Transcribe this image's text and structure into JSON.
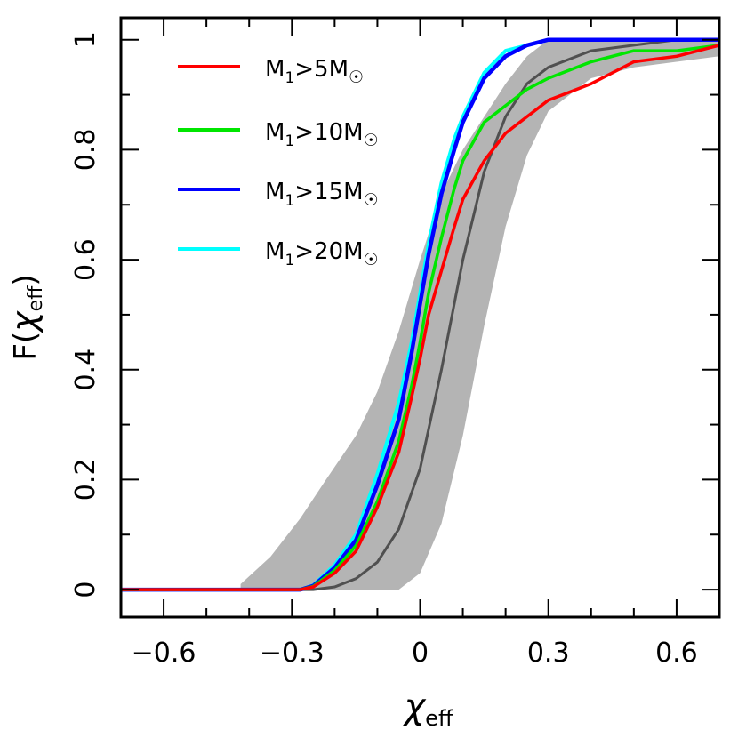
{
  "chart_data": {
    "type": "line",
    "xlabel_base": "χ",
    "xlabel_sub": "eff",
    "ylabel_pre": "F(",
    "ylabel_sym": "χ",
    "ylabel_sub": "eff",
    "ylabel_post": ")",
    "xlim": [
      -0.7,
      0.7
    ],
    "ylim": [
      -0.05,
      1.04
    ],
    "x_ticks": [
      -0.6,
      -0.3,
      0,
      0.3,
      0.6
    ],
    "x_tick_labels": [
      "−0.6",
      "−0.3",
      "0",
      "0.3",
      "0.6"
    ],
    "y_ticks": [
      0,
      0.2,
      0.4,
      0.6,
      0.8,
      1
    ],
    "y_tick_labels": [
      "0",
      "0.2",
      "0.4",
      "0.6",
      "0.8",
      "1"
    ],
    "legend_position": "top-left",
    "band": {
      "name": "model uncertainty band",
      "color": "#b4b4b4",
      "x": [
        -0.42,
        -0.35,
        -0.28,
        -0.22,
        -0.15,
        -0.1,
        -0.05,
        0.0,
        0.05,
        0.1,
        0.15,
        0.2,
        0.25,
        0.3,
        0.4,
        0.5,
        0.6,
        0.7
      ],
      "lower": [
        0.0,
        0.0,
        0.0,
        0.0,
        0.0,
        0.0,
        0.0,
        0.03,
        0.12,
        0.28,
        0.48,
        0.66,
        0.79,
        0.87,
        0.93,
        0.95,
        0.96,
        0.97
      ],
      "upper": [
        0.01,
        0.06,
        0.13,
        0.2,
        0.28,
        0.36,
        0.47,
        0.6,
        0.72,
        0.8,
        0.86,
        0.92,
        0.97,
        1.0,
        1.0,
        1.0,
        1.0,
        1.0
      ]
    },
    "median": {
      "name": "model median",
      "color": "#505050",
      "x": [
        -0.7,
        -0.25,
        -0.2,
        -0.15,
        -0.1,
        -0.05,
        0.0,
        0.05,
        0.1,
        0.15,
        0.2,
        0.25,
        0.3,
        0.4,
        0.5,
        0.6,
        0.7
      ],
      "values": [
        0.0,
        0.0,
        0.005,
        0.02,
        0.05,
        0.11,
        0.22,
        0.4,
        0.6,
        0.76,
        0.86,
        0.92,
        0.95,
        0.98,
        0.99,
        1.0,
        1.0
      ]
    },
    "series": [
      {
        "name": "M1>5M☉",
        "label_main": "M",
        "label_sub": "1",
        "label_mid": ">5M",
        "label_sun": "☉",
        "color": "#ff0000",
        "x": [
          -0.7,
          -0.28,
          -0.25,
          -0.2,
          -0.15,
          -0.1,
          -0.05,
          -0.02,
          0.0,
          0.02,
          0.05,
          0.08,
          0.1,
          0.15,
          0.2,
          0.25,
          0.3,
          0.4,
          0.5,
          0.6,
          0.7
        ],
        "values": [
          0.0,
          0.0,
          0.005,
          0.03,
          0.07,
          0.15,
          0.25,
          0.35,
          0.42,
          0.5,
          0.58,
          0.66,
          0.71,
          0.78,
          0.83,
          0.86,
          0.89,
          0.92,
          0.96,
          0.97,
          0.99
        ]
      },
      {
        "name": "M1>10M☉",
        "label_main": "M",
        "label_sub": "1",
        "label_mid": ">10M",
        "label_sun": "☉",
        "color": "#00e600",
        "x": [
          -0.7,
          -0.28,
          -0.25,
          -0.2,
          -0.15,
          -0.1,
          -0.05,
          -0.02,
          0.0,
          0.02,
          0.05,
          0.08,
          0.1,
          0.15,
          0.2,
          0.25,
          0.3,
          0.4,
          0.5,
          0.6,
          0.7
        ],
        "values": [
          0.0,
          0.0,
          0.006,
          0.035,
          0.08,
          0.16,
          0.27,
          0.37,
          0.45,
          0.54,
          0.64,
          0.73,
          0.78,
          0.85,
          0.88,
          0.91,
          0.93,
          0.96,
          0.98,
          0.98,
          0.99
        ]
      },
      {
        "name": "M1>15M☉",
        "label_main": "M",
        "label_sub": "1",
        "label_mid": ">15M",
        "label_sun": "☉",
        "color": "#0000ff",
        "x": [
          -0.7,
          -0.28,
          -0.25,
          -0.2,
          -0.15,
          -0.1,
          -0.05,
          -0.02,
          0.0,
          0.02,
          0.05,
          0.08,
          0.1,
          0.15,
          0.2,
          0.25,
          0.3,
          0.35,
          0.7
        ],
        "values": [
          0.0,
          0.0,
          0.007,
          0.04,
          0.09,
          0.19,
          0.31,
          0.43,
          0.52,
          0.61,
          0.72,
          0.8,
          0.85,
          0.93,
          0.97,
          0.99,
          1.0,
          1.0,
          1.0
        ]
      },
      {
        "name": "M1>20M☉",
        "label_main": "M",
        "label_sub": "1",
        "label_mid": ">20M",
        "label_sun": "☉",
        "color": "#00ffff",
        "x": [
          -0.7,
          -0.28,
          -0.25,
          -0.2,
          -0.15,
          -0.1,
          -0.05,
          -0.02,
          0.0,
          0.02,
          0.05,
          0.08,
          0.1,
          0.15,
          0.2,
          0.25,
          0.3,
          0.35,
          0.7
        ],
        "values": [
          0.0,
          0.0,
          0.008,
          0.045,
          0.1,
          0.21,
          0.34,
          0.45,
          0.54,
          0.63,
          0.74,
          0.82,
          0.86,
          0.94,
          0.98,
          0.99,
          1.0,
          1.0,
          1.0
        ]
      }
    ]
  }
}
